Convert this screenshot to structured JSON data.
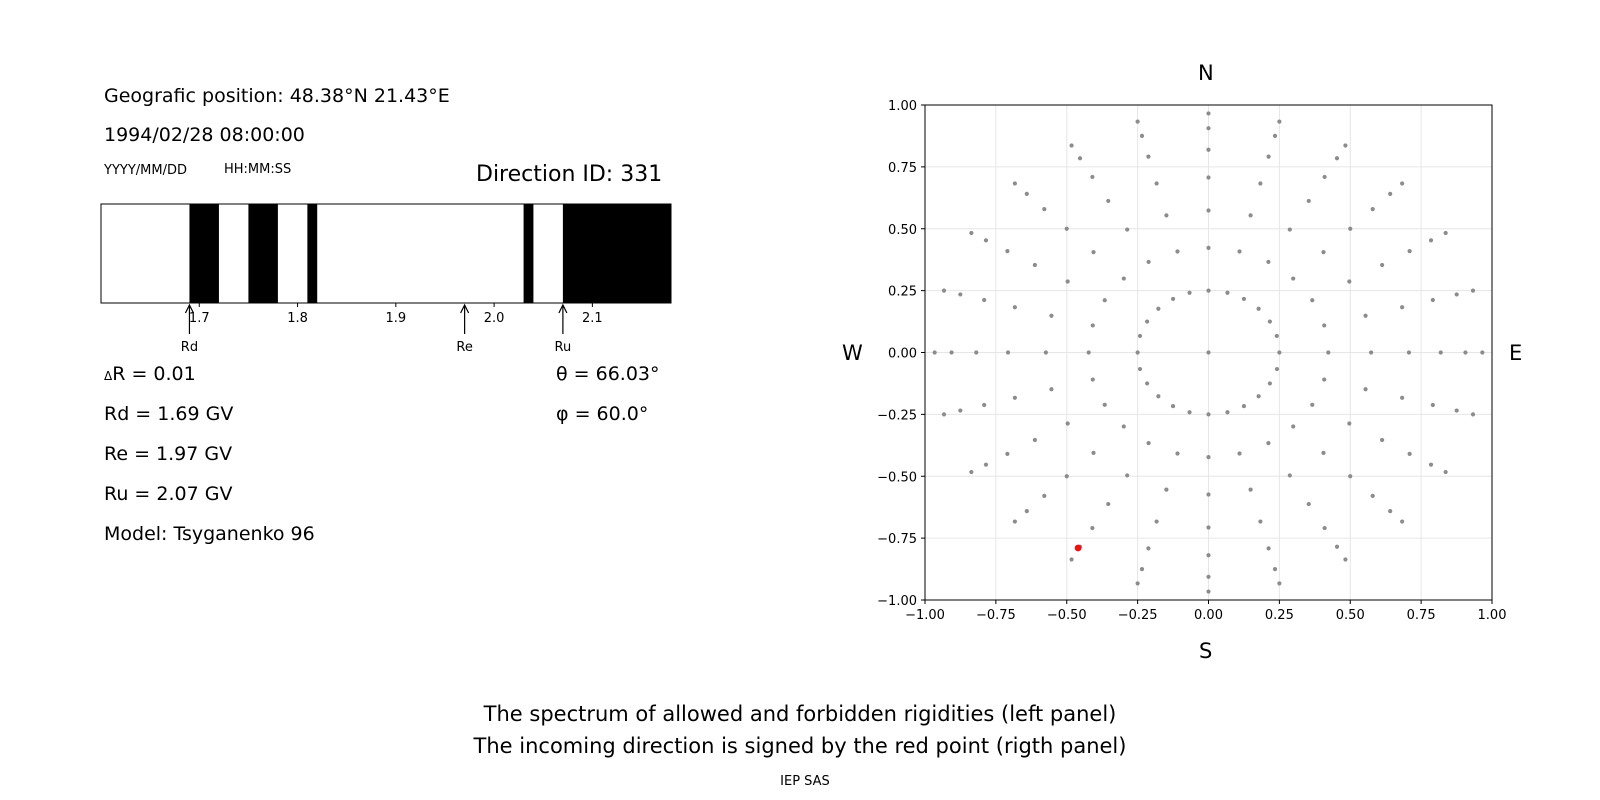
{
  "info": {
    "position": "Geografic position: 48.38°N 21.43°E",
    "datetime": "1994/02/28 08:00:00",
    "date_hint": "YYYY/MM/DD",
    "time_hint": "HH:MM:SS",
    "direction_id": "Direction ID: 331"
  },
  "params": {
    "delta_r": "R = 0.01",
    "delta_symbol": "Δ",
    "rd": "Rd = 1.69 GV",
    "re": "Re = 1.97 GV",
    "ru": "Ru = 2.07 GV",
    "model": "Model: Tsyganenko 96",
    "theta": "θ = 66.03°",
    "phi": "φ = 60.0°"
  },
  "compass": {
    "n": "N",
    "s": "S",
    "w": "W",
    "e": "E"
  },
  "caption": {
    "line1": "The spectrum of allowed and forbidden rigidities (left panel)",
    "line2": "The incoming direction is signed by the red point (rigth panel)",
    "credit": "IEP SAS"
  },
  "colors": {
    "forbidden": "#000000",
    "allowed": "#ffffff",
    "grid_point": "#8c8c8c",
    "direction_point": "#ee1111"
  },
  "chart_data": [
    {
      "type": "bar",
      "xlim": [
        1.6,
        2.18
      ],
      "ticks": [
        1.7,
        1.8,
        1.9,
        2.0,
        2.1
      ],
      "tick_labels": [
        "1.7",
        "1.8",
        "1.9",
        "2.0",
        "2.1"
      ],
      "forbidden_bands": [
        [
          1.69,
          1.72
        ],
        [
          1.75,
          1.78
        ],
        [
          1.81,
          1.82
        ],
        [
          2.03,
          2.04
        ],
        [
          2.07,
          2.18
        ]
      ],
      "markers": [
        {
          "label": "Rd",
          "value": 1.69
        },
        {
          "label": "Re",
          "value": 1.97
        },
        {
          "label": "Ru",
          "value": 2.07
        }
      ]
    },
    {
      "type": "scatter",
      "xlim": [
        -1.0,
        1.0
      ],
      "ylim": [
        -1.0,
        1.0
      ],
      "grid": true,
      "ticks": [
        -1.0,
        -0.75,
        -0.5,
        -0.25,
        0.0,
        0.25,
        0.5,
        0.75,
        1.0
      ],
      "tick_labels": [
        "−1.00",
        "−0.75",
        "−0.50",
        "−0.25",
        "0.00",
        "0.25",
        "0.50",
        "0.75",
        "1.00"
      ],
      "points": [
        [
          0,
          0
        ],
        [
          0.25,
          0.0
        ],
        [
          0.2409,
          0.0669
        ],
        [
          0.2165,
          0.125
        ],
        [
          0.1768,
          0.1768
        ],
        [
          0.125,
          0.2165
        ],
        [
          0.0669,
          0.2415
        ],
        [
          0.0,
          0.25
        ],
        [
          -0.0669,
          0.2415
        ],
        [
          -0.125,
          0.2165
        ],
        [
          -0.1768,
          0.1768
        ],
        [
          -0.2165,
          0.125
        ],
        [
          -0.2415,
          0.0669
        ],
        [
          -0.25,
          0.0
        ],
        [
          -0.2415,
          -0.0669
        ],
        [
          -0.2165,
          -0.125
        ],
        [
          -0.1768,
          -0.1768
        ],
        [
          -0.125,
          -0.2165
        ],
        [
          -0.0669,
          -0.2415
        ],
        [
          0.0,
          -0.25
        ],
        [
          0.0669,
          -0.2415
        ],
        [
          0.125,
          -0.2165
        ],
        [
          0.1768,
          -0.1768
        ],
        [
          0.2165,
          -0.125
        ],
        [
          0.2415,
          -0.0669
        ],
        [
          0.4226,
          0.0
        ],
        [
          0.4082,
          0.1094
        ],
        [
          0.366,
          0.2113
        ],
        [
          0.2988,
          0.2988
        ],
        [
          0.2113,
          0.366
        ],
        [
          0.1094,
          0.4082
        ],
        [
          0.0,
          0.4226
        ],
        [
          -0.1094,
          0.4082
        ],
        [
          -0.2113,
          0.366
        ],
        [
          -0.2988,
          0.2988
        ],
        [
          -0.366,
          0.2113
        ],
        [
          -0.4082,
          0.1094
        ],
        [
          -0.4226,
          0.0
        ],
        [
          -0.4082,
          -0.1094
        ],
        [
          -0.366,
          -0.2113
        ],
        [
          -0.2988,
          -0.2988
        ],
        [
          -0.2113,
          -0.366
        ],
        [
          -0.1094,
          -0.4082
        ],
        [
          0.0,
          -0.4226
        ],
        [
          0.1094,
          -0.4082
        ],
        [
          0.2113,
          -0.366
        ],
        [
          0.2988,
          -0.2988
        ],
        [
          0.366,
          -0.2113
        ],
        [
          0.4082,
          -0.1094
        ],
        [
          0.5736,
          0.0
        ],
        [
          0.554,
          0.1485
        ],
        [
          0.4967,
          0.2868
        ],
        [
          0.4056,
          0.4056
        ],
        [
          0.2868,
          0.4967
        ],
        [
          0.1485,
          0.554
        ],
        [
          0.0,
          0.5736
        ],
        [
          -0.1485,
          0.554
        ],
        [
          -0.2868,
          0.4967
        ],
        [
          -0.4056,
          0.4056
        ],
        [
          -0.4967,
          0.2868
        ],
        [
          -0.554,
          0.1485
        ],
        [
          -0.5736,
          0.0
        ],
        [
          -0.554,
          -0.1485
        ],
        [
          -0.4967,
          -0.2868
        ],
        [
          -0.4056,
          -0.4056
        ],
        [
          -0.2868,
          -0.4967
        ],
        [
          -0.1485,
          -0.554
        ],
        [
          0.0,
          -0.5736
        ],
        [
          0.1485,
          -0.554
        ],
        [
          0.2868,
          -0.4967
        ],
        [
          0.4056,
          -0.4056
        ],
        [
          0.4967,
          -0.2868
        ],
        [
          0.554,
          -0.1485
        ],
        [
          0.7071,
          0.0
        ],
        [
          0.683,
          0.183
        ],
        [
          0.6124,
          0.3536
        ],
        [
          0.5,
          0.5
        ],
        [
          0.3536,
          0.6124
        ],
        [
          0.183,
          0.683
        ],
        [
          0.0,
          0.7071
        ],
        [
          -0.183,
          0.683
        ],
        [
          -0.3536,
          0.6124
        ],
        [
          -0.5,
          0.5
        ],
        [
          -0.6124,
          0.3536
        ],
        [
          -0.683,
          0.183
        ],
        [
          -0.7071,
          0.0
        ],
        [
          -0.683,
          -0.183
        ],
        [
          -0.6124,
          -0.3536
        ],
        [
          -0.5,
          -0.5
        ],
        [
          -0.3536,
          -0.6124
        ],
        [
          -0.183,
          -0.683
        ],
        [
          0.0,
          -0.7071
        ],
        [
          0.183,
          -0.683
        ],
        [
          0.3536,
          -0.6124
        ],
        [
          0.5,
          -0.5
        ],
        [
          0.6124,
          -0.3536
        ],
        [
          0.683,
          -0.183
        ],
        [
          0.8192,
          0.0
        ],
        [
          0.7913,
          0.212
        ],
        [
          0.7094,
          0.4096
        ],
        [
          0.5792,
          0.5792
        ],
        [
          0.4096,
          0.7094
        ],
        [
          0.212,
          0.7913
        ],
        [
          0.0,
          0.8192
        ],
        [
          -0.212,
          0.7913
        ],
        [
          -0.4096,
          0.7094
        ],
        [
          -0.5792,
          0.5792
        ],
        [
          -0.7094,
          0.4096
        ],
        [
          -0.7913,
          0.212
        ],
        [
          -0.8192,
          0.0
        ],
        [
          -0.7913,
          -0.212
        ],
        [
          -0.7094,
          -0.4096
        ],
        [
          -0.5792,
          -0.5792
        ],
        [
          -0.4096,
          -0.7094
        ],
        [
          -0.212,
          -0.7913
        ],
        [
          0.0,
          -0.8192
        ],
        [
          0.212,
          -0.7913
        ],
        [
          0.4096,
          -0.7094
        ],
        [
          0.5792,
          -0.5792
        ],
        [
          0.7094,
          -0.4096
        ],
        [
          0.7913,
          -0.212
        ],
        [
          0.9063,
          0.0
        ],
        [
          0.8754,
          0.2346
        ],
        [
          0.7849,
          0.4532
        ],
        [
          0.6409,
          0.6409
        ],
        [
          0.4532,
          0.7849
        ],
        [
          0.2346,
          0.8754
        ],
        [
          0.0,
          0.9063
        ],
        [
          -0.2346,
          0.8754
        ],
        [
          -0.4532,
          0.7849
        ],
        [
          -0.6409,
          0.6409
        ],
        [
          -0.7849,
          0.4532
        ],
        [
          -0.8754,
          0.2346
        ],
        [
          -0.9063,
          0.0
        ],
        [
          -0.8754,
          -0.2346
        ],
        [
          -0.7849,
          -0.4532
        ],
        [
          -0.6409,
          -0.6409
        ],
        [
          -0.4532,
          -0.7849
        ],
        [
          -0.2346,
          -0.8754
        ],
        [
          0.0,
          -0.9063
        ],
        [
          0.2346,
          -0.8754
        ],
        [
          0.4532,
          -0.7849
        ],
        [
          0.6409,
          -0.6409
        ],
        [
          0.7849,
          -0.4532
        ],
        [
          0.8754,
          -0.2346
        ],
        [
          0.9659,
          0.0
        ],
        [
          0.933,
          0.25
        ],
        [
          0.8365,
          0.483
        ],
        [
          0.683,
          0.683
        ],
        [
          0.483,
          0.8365
        ],
        [
          0.25,
          0.933
        ],
        [
          0.0,
          0.9659
        ],
        [
          -0.25,
          0.933
        ],
        [
          -0.483,
          0.8365
        ],
        [
          -0.683,
          0.683
        ],
        [
          -0.8365,
          0.483
        ],
        [
          -0.933,
          0.25
        ],
        [
          -0.9659,
          0.0
        ],
        [
          -0.933,
          -0.25
        ],
        [
          -0.8365,
          -0.483
        ],
        [
          -0.683,
          -0.683
        ],
        [
          -0.483,
          -0.8365
        ],
        [
          -0.25,
          -0.933
        ],
        [
          0.0,
          -0.9659
        ],
        [
          0.25,
          -0.933
        ],
        [
          0.483,
          -0.8365
        ],
        [
          0.683,
          -0.683
        ],
        [
          0.8365,
          -0.483
        ],
        [
          0.933,
          -0.25
        ]
      ],
      "highlight": [
        -0.46,
        -0.79
      ]
    }
  ]
}
